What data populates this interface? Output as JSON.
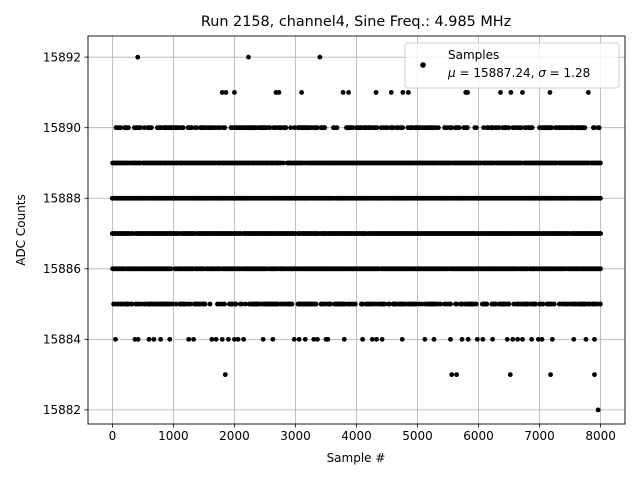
{
  "chart_data": {
    "type": "scatter",
    "title": "Run 2158, channel4, Sine Freq.: 4.985 MHz",
    "xlabel": "Sample #",
    "ylabel": "ADC Counts",
    "xlim": [
      -400,
      8400
    ],
    "ylim": [
      15881.6,
      15892.6
    ],
    "xticks": [
      0,
      1000,
      2000,
      3000,
      4000,
      5000,
      6000,
      7000,
      8000
    ],
    "yticks": [
      15882,
      15884,
      15886,
      15888,
      15890,
      15892
    ],
    "grid": true,
    "legend_placement": "upper-right",
    "marker_color": "#000000",
    "series": [
      {
        "name": "Samples",
        "stats_label_parts": [
          "μ",
          " = 15887.24, ",
          "σ",
          " = 1.28"
        ]
      }
    ],
    "samples_total": 8000,
    "dense_levels": [
      15885,
      15886,
      15887,
      15888,
      15889,
      15890
    ],
    "sparse_points": [
      {
        "x": 415,
        "y": 15892
      },
      {
        "x": 2230,
        "y": 15892
      },
      {
        "x": 3400,
        "y": 15892
      },
      {
        "x": 1800,
        "y": 15891
      },
      {
        "x": 1860,
        "y": 15891
      },
      {
        "x": 2000,
        "y": 15891
      },
      {
        "x": 2680,
        "y": 15891
      },
      {
        "x": 2730,
        "y": 15891
      },
      {
        "x": 3100,
        "y": 15891
      },
      {
        "x": 3780,
        "y": 15891
      },
      {
        "x": 3870,
        "y": 15891
      },
      {
        "x": 4320,
        "y": 15891
      },
      {
        "x": 4570,
        "y": 15891
      },
      {
        "x": 4760,
        "y": 15891
      },
      {
        "x": 4850,
        "y": 15891
      },
      {
        "x": 5790,
        "y": 15891
      },
      {
        "x": 5820,
        "y": 15891
      },
      {
        "x": 6360,
        "y": 15891
      },
      {
        "x": 6530,
        "y": 15891
      },
      {
        "x": 6720,
        "y": 15891
      },
      {
        "x": 7170,
        "y": 15891
      },
      {
        "x": 7800,
        "y": 15891
      },
      {
        "x": 50,
        "y": 15884
      },
      {
        "x": 370,
        "y": 15884
      },
      {
        "x": 420,
        "y": 15884
      },
      {
        "x": 600,
        "y": 15884
      },
      {
        "x": 680,
        "y": 15884
      },
      {
        "x": 790,
        "y": 15884
      },
      {
        "x": 940,
        "y": 15884
      },
      {
        "x": 1250,
        "y": 15884
      },
      {
        "x": 1330,
        "y": 15884
      },
      {
        "x": 1630,
        "y": 15884
      },
      {
        "x": 1700,
        "y": 15884
      },
      {
        "x": 1800,
        "y": 15884
      },
      {
        "x": 1900,
        "y": 15884
      },
      {
        "x": 2000,
        "y": 15884
      },
      {
        "x": 2060,
        "y": 15884
      },
      {
        "x": 2150,
        "y": 15884
      },
      {
        "x": 2470,
        "y": 15884
      },
      {
        "x": 2630,
        "y": 15884
      },
      {
        "x": 2980,
        "y": 15884
      },
      {
        "x": 3060,
        "y": 15884
      },
      {
        "x": 3160,
        "y": 15884
      },
      {
        "x": 3300,
        "y": 15884
      },
      {
        "x": 3360,
        "y": 15884
      },
      {
        "x": 3500,
        "y": 15884
      },
      {
        "x": 3530,
        "y": 15884
      },
      {
        "x": 3800,
        "y": 15884
      },
      {
        "x": 4100,
        "y": 15884
      },
      {
        "x": 4260,
        "y": 15884
      },
      {
        "x": 4330,
        "y": 15884
      },
      {
        "x": 4420,
        "y": 15884
      },
      {
        "x": 4750,
        "y": 15884
      },
      {
        "x": 5120,
        "y": 15884
      },
      {
        "x": 5270,
        "y": 15884
      },
      {
        "x": 5540,
        "y": 15884
      },
      {
        "x": 5730,
        "y": 15884
      },
      {
        "x": 5830,
        "y": 15884
      },
      {
        "x": 5980,
        "y": 15884
      },
      {
        "x": 6070,
        "y": 15884
      },
      {
        "x": 6230,
        "y": 15884
      },
      {
        "x": 6470,
        "y": 15884
      },
      {
        "x": 6560,
        "y": 15884
      },
      {
        "x": 6640,
        "y": 15884
      },
      {
        "x": 6720,
        "y": 15884
      },
      {
        "x": 6870,
        "y": 15884
      },
      {
        "x": 6980,
        "y": 15884
      },
      {
        "x": 7040,
        "y": 15884
      },
      {
        "x": 7210,
        "y": 15884
      },
      {
        "x": 7560,
        "y": 15884
      },
      {
        "x": 7760,
        "y": 15884
      },
      {
        "x": 7900,
        "y": 15884
      },
      {
        "x": 1850,
        "y": 15883
      },
      {
        "x": 5560,
        "y": 15883
      },
      {
        "x": 5640,
        "y": 15883
      },
      {
        "x": 6520,
        "y": 15883
      },
      {
        "x": 7180,
        "y": 15883
      },
      {
        "x": 7900,
        "y": 15883
      },
      {
        "x": 7960,
        "y": 15882
      }
    ]
  }
}
